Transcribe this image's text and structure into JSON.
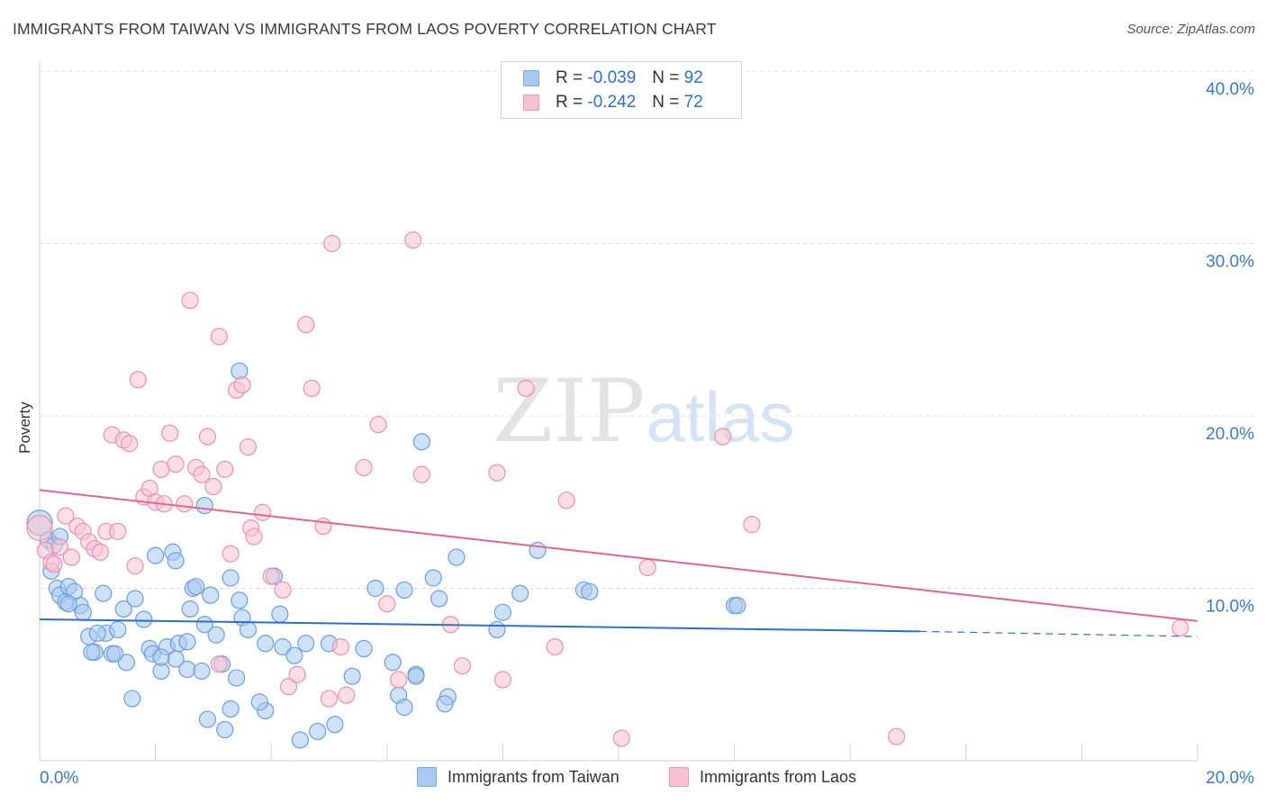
{
  "header": {
    "title": "IMMIGRANTS FROM TAIWAN VS IMMIGRANTS FROM LAOS POVERTY CORRELATION CHART",
    "source": "Source: ZipAtlas.com"
  },
  "watermark": {
    "zip": "ZIP",
    "atlas": "atlas"
  },
  "legend": {
    "rows": [
      {
        "r_label": "R =",
        "r_value": "-0.039",
        "n_label": "N =",
        "n_value": "92",
        "color": "#a8c8f0",
        "border": "#7aa8e0"
      },
      {
        "r_label": "R =",
        "r_value": "-0.242",
        "n_label": "N =",
        "n_value": "72",
        "color": "#f9c2d2",
        "border": "#ef9ab5"
      }
    ]
  },
  "bottom_legend": {
    "taiwan": "Immigrants from Taiwan",
    "laos": "Immigrants from Laos"
  },
  "colors": {
    "taiwan_fill": "#a8c8f0",
    "taiwan_stroke": "#6a9edf",
    "taiwan_line": "#2d6fcc",
    "laos_fill": "#f9c2d2",
    "laos_stroke": "#ec8fae",
    "laos_line": "#e5648e",
    "axis_text": "#3b78cf",
    "grid": "#dcdcdc"
  },
  "chart_data": {
    "type": "scatter",
    "title": "IMMIGRANTS FROM TAIWAN VS IMMIGRANTS FROM LAOS POVERTY CORRELATION CHART",
    "xlabel": "",
    "ylabel": "Poverty",
    "xlim": [
      0,
      20
    ],
    "ylim": [
      0,
      40
    ],
    "x_tick_labels": [
      "0.0%",
      "20.0%"
    ],
    "y_ticks": [
      10,
      20,
      30,
      40
    ],
    "y_tick_labels": [
      "10.0%",
      "20.0%",
      "30.0%",
      "40.0%"
    ],
    "grid": true,
    "legend_position": "top-center",
    "series": [
      {
        "name": "Immigrants from Taiwan",
        "r": -0.039,
        "n": 92,
        "trend": {
          "x0": 0,
          "y0": 8.2,
          "x1": 15.2,
          "y1": 7.5,
          "dash_to_x": 20,
          "dash_to_y": 7.2
        },
        "points": [
          [
            0.0,
            13.8
          ],
          [
            0.15,
            12.8
          ],
          [
            0.2,
            11.0
          ],
          [
            0.25,
            12.5
          ],
          [
            0.3,
            10.0
          ],
          [
            0.35,
            9.6
          ],
          [
            0.45,
            9.2
          ],
          [
            0.5,
            10.1
          ],
          [
            0.6,
            9.8
          ],
          [
            0.7,
            9.0
          ],
          [
            0.75,
            8.6
          ],
          [
            0.85,
            7.2
          ],
          [
            0.95,
            6.3
          ],
          [
            1.1,
            9.7
          ],
          [
            1.15,
            7.4
          ],
          [
            1.25,
            6.2
          ],
          [
            1.35,
            7.6
          ],
          [
            1.45,
            8.8
          ],
          [
            1.5,
            5.7
          ],
          [
            1.65,
            9.4
          ],
          [
            1.8,
            8.2
          ],
          [
            1.9,
            6.5
          ],
          [
            2.0,
            11.9
          ],
          [
            2.1,
            5.2
          ],
          [
            2.2,
            6.6
          ],
          [
            2.3,
            12.1
          ],
          [
            2.35,
            11.6
          ],
          [
            2.4,
            6.8
          ],
          [
            2.55,
            5.3
          ],
          [
            2.6,
            8.8
          ],
          [
            2.65,
            10.0
          ],
          [
            2.8,
            5.2
          ],
          [
            2.85,
            7.9
          ],
          [
            2.95,
            9.6
          ],
          [
            3.05,
            7.3
          ],
          [
            3.15,
            5.6
          ],
          [
            3.3,
            10.6
          ],
          [
            3.45,
            9.3
          ],
          [
            3.5,
            8.3
          ],
          [
            3.6,
            7.6
          ],
          [
            3.9,
            6.8
          ],
          [
            4.05,
            10.7
          ],
          [
            4.15,
            8.5
          ],
          [
            4.2,
            6.6
          ],
          [
            4.5,
            1.2
          ],
          [
            4.8,
            1.7
          ],
          [
            5.1,
            2.1
          ],
          [
            5.4,
            4.9
          ],
          [
            5.8,
            10.0
          ],
          [
            6.1,
            5.7
          ],
          [
            6.3,
            9.9
          ],
          [
            6.5,
            5.0
          ],
          [
            6.6,
            18.5
          ],
          [
            6.8,
            10.6
          ],
          [
            6.9,
            9.4
          ],
          [
            7.05,
            3.7
          ],
          [
            7.2,
            11.8
          ],
          [
            7.9,
            7.6
          ],
          [
            8.0,
            8.6
          ],
          [
            8.3,
            9.7
          ],
          [
            8.6,
            12.2
          ],
          [
            9.4,
            9.9
          ],
          [
            9.5,
            9.8
          ],
          [
            12.0,
            9.0
          ],
          [
            12.05,
            9.0
          ],
          [
            3.45,
            22.6
          ],
          [
            2.85,
            14.8
          ],
          [
            1.6,
            3.6
          ],
          [
            2.35,
            5.9
          ],
          [
            2.55,
            6.9
          ],
          [
            3.3,
            3.0
          ],
          [
            3.4,
            4.8
          ],
          [
            2.9,
            2.4
          ],
          [
            3.2,
            1.8
          ],
          [
            3.9,
            2.9
          ],
          [
            4.4,
            6.1
          ],
          [
            5.0,
            6.8
          ],
          [
            6.2,
            3.8
          ],
          [
            6.3,
            3.1
          ],
          [
            0.9,
            6.3
          ],
          [
            1.3,
            6.2
          ],
          [
            1.95,
            6.2
          ],
          [
            2.1,
            6.0
          ],
          [
            0.35,
            13.0
          ],
          [
            0.5,
            9.1
          ],
          [
            1.0,
            7.4
          ],
          [
            2.7,
            10.1
          ],
          [
            3.8,
            3.4
          ],
          [
            4.6,
            6.8
          ],
          [
            5.6,
            6.5
          ],
          [
            6.5,
            4.9
          ],
          [
            7.0,
            3.3
          ]
        ]
      },
      {
        "name": "Immigrants from Laos",
        "r": -0.242,
        "n": 72,
        "trend": {
          "x0": 0,
          "y0": 15.7,
          "x1": 20,
          "y1": 8.1
        },
        "points": [
          [
            0.0,
            13.5
          ],
          [
            0.1,
            12.2
          ],
          [
            0.2,
            11.5
          ],
          [
            0.25,
            11.4
          ],
          [
            0.35,
            12.4
          ],
          [
            0.45,
            14.2
          ],
          [
            0.55,
            11.8
          ],
          [
            0.65,
            13.6
          ],
          [
            0.75,
            13.3
          ],
          [
            0.85,
            12.7
          ],
          [
            0.95,
            12.3
          ],
          [
            1.05,
            12.1
          ],
          [
            1.15,
            13.3
          ],
          [
            1.25,
            18.9
          ],
          [
            1.35,
            13.3
          ],
          [
            1.45,
            18.6
          ],
          [
            1.55,
            18.4
          ],
          [
            1.65,
            11.3
          ],
          [
            1.7,
            22.1
          ],
          [
            1.8,
            15.3
          ],
          [
            1.9,
            15.8
          ],
          [
            2.0,
            15.0
          ],
          [
            2.1,
            16.9
          ],
          [
            2.15,
            14.9
          ],
          [
            2.25,
            19.0
          ],
          [
            2.35,
            17.2
          ],
          [
            2.5,
            14.9
          ],
          [
            2.6,
            26.7
          ],
          [
            2.7,
            17.0
          ],
          [
            2.8,
            16.6
          ],
          [
            2.9,
            18.8
          ],
          [
            3.0,
            15.9
          ],
          [
            3.1,
            24.6
          ],
          [
            3.2,
            16.9
          ],
          [
            3.3,
            12.0
          ],
          [
            3.4,
            21.5
          ],
          [
            3.5,
            21.8
          ],
          [
            3.6,
            18.2
          ],
          [
            3.65,
            13.5
          ],
          [
            3.7,
            13.0
          ],
          [
            3.85,
            14.4
          ],
          [
            4.0,
            10.7
          ],
          [
            4.2,
            9.9
          ],
          [
            4.3,
            4.3
          ],
          [
            4.45,
            5.0
          ],
          [
            4.6,
            25.3
          ],
          [
            4.7,
            21.6
          ],
          [
            4.9,
            13.6
          ],
          [
            5.05,
            30.0
          ],
          [
            5.2,
            6.6
          ],
          [
            5.3,
            3.8
          ],
          [
            5.6,
            17.0
          ],
          [
            5.85,
            19.5
          ],
          [
            6.0,
            9.1
          ],
          [
            6.2,
            4.7
          ],
          [
            6.45,
            30.2
          ],
          [
            6.6,
            16.6
          ],
          [
            7.1,
            7.9
          ],
          [
            7.3,
            5.5
          ],
          [
            7.9,
            16.7
          ],
          [
            8.0,
            4.7
          ],
          [
            8.4,
            21.6
          ],
          [
            8.9,
            6.6
          ],
          [
            9.1,
            15.1
          ],
          [
            10.05,
            1.3
          ],
          [
            10.5,
            11.2
          ],
          [
            11.8,
            18.8
          ],
          [
            12.3,
            13.7
          ],
          [
            14.8,
            1.4
          ],
          [
            19.7,
            7.7
          ],
          [
            5.0,
            3.6
          ],
          [
            3.1,
            5.6
          ]
        ]
      }
    ]
  }
}
